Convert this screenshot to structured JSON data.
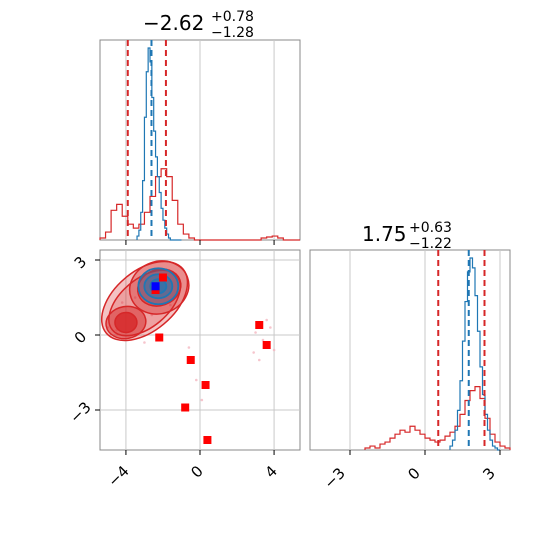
{
  "colors": {
    "blue_series": "#1f77b4",
    "red_series": "#d62728",
    "marker_red": "#ff0000",
    "marker_blue": "#0000ff",
    "grid": "#c8c8c8",
    "frame": "#888888"
  },
  "chart_data": [
    {
      "type": "histogram",
      "panel": "top-left",
      "title": {
        "median": "−2.62",
        "plus": "+0.78",
        "minus": "−1.28"
      },
      "x_range": [
        -5.4,
        5.4
      ],
      "grid": true,
      "x_ticks": [
        -4,
        0,
        4
      ],
      "show_x_tick_labels": false,
      "quantile_lines": {
        "red": [
          -3.9,
          -1.84
        ],
        "blue": [
          -2.62
        ]
      },
      "series": [
        {
          "color": "red",
          "bin_edges": [
            -5.4,
            -5.1,
            -4.8,
            -4.5,
            -4.2,
            -3.9,
            -3.6,
            -3.3,
            -3.0,
            -2.7,
            -2.4,
            -2.1,
            -1.8,
            -1.5,
            -1.2,
            -0.9,
            -0.6,
            -0.3,
            0.0,
            0.3,
            0.6,
            0.9,
            1.2,
            1.5,
            1.8,
            2.1,
            2.4,
            2.7,
            3.0,
            3.3,
            3.6,
            3.9,
            4.2,
            4.5,
            4.8,
            5.1,
            5.4
          ],
          "heights": [
            0.01,
            0.04,
            0.15,
            0.18,
            0.12,
            0.08,
            0.06,
            0.08,
            0.14,
            0.22,
            0.32,
            0.36,
            0.32,
            0.2,
            0.08,
            0.03,
            0.01,
            0,
            0,
            0,
            0,
            0,
            0,
            0,
            0,
            0,
            0,
            0,
            0,
            0.01,
            0.015,
            0.02,
            0.01,
            0,
            0,
            0
          ]
        },
        {
          "color": "blue",
          "bin_edges": [
            -3.4,
            -3.3,
            -3.2,
            -3.1,
            -3.0,
            -2.9,
            -2.8,
            -2.7,
            -2.6,
            -2.5,
            -2.4,
            -2.3,
            -2.2,
            -2.1,
            -2.0,
            -1.9,
            -1.8,
            -1.7,
            -1.6,
            -1.5,
            -1.4,
            -1.3,
            -1.2,
            -1.1,
            -1.0
          ],
          "heights": [
            0.02,
            0.05,
            0.14,
            0.3,
            0.62,
            0.85,
            0.97,
            0.9,
            0.72,
            0.55,
            0.42,
            0.32,
            0.24,
            0.16,
            0.1,
            0.06,
            0.03,
            0.01,
            0,
            0,
            0,
            0,
            0,
            0
          ]
        }
      ]
    },
    {
      "type": "contour",
      "panel": "bottom-left",
      "x_range": [
        -5.4,
        5.4
      ],
      "y_range": [
        -4.6,
        3.4
      ],
      "grid": true,
      "x_ticks": [
        "-4",
        "0",
        "4"
      ],
      "y_ticks": [
        "3",
        "0",
        "-3"
      ],
      "x_tick_values": [
        -4,
        0,
        4
      ],
      "y_tick_values": [
        3,
        0,
        -3
      ],
      "red_blob_centers": [
        [
          -2.2,
          1.9
        ],
        [
          -4.0,
          0.5
        ]
      ],
      "blue_blob_center": [
        -2.25,
        1.95
      ],
      "red_markers": [
        [
          -2.0,
          2.3
        ],
        [
          -2.4,
          1.8
        ],
        [
          -2.2,
          -0.1
        ],
        [
          -0.5,
          -1.0
        ],
        [
          0.3,
          -2.0
        ],
        [
          -0.8,
          -2.9
        ],
        [
          0.4,
          -4.2
        ],
        [
          3.2,
          0.4
        ],
        [
          3.6,
          -0.4
        ]
      ],
      "blue_markers": [
        [
          -2.4,
          1.95
        ]
      ]
    },
    {
      "type": "histogram",
      "panel": "bottom-right",
      "title": {
        "median": "1.75",
        "plus": "+0.63",
        "minus": "−1.22"
      },
      "x_range": [
        -4.6,
        3.4
      ],
      "grid": true,
      "x_ticks": [
        "-3",
        "0",
        "3"
      ],
      "x_tick_values": [
        -3,
        0,
        3
      ],
      "quantile_lines": {
        "red": [
          0.53,
          2.38
        ],
        "blue": [
          1.75
        ]
      },
      "series": [
        {
          "color": "red",
          "bin_edges": [
            -2.4,
            -2.2,
            -2.0,
            -1.8,
            -1.6,
            -1.4,
            -1.2,
            -1.0,
            -0.8,
            -0.6,
            -0.4,
            -0.2,
            0.0,
            0.2,
            0.4,
            0.6,
            0.8,
            1.0,
            1.2,
            1.4,
            1.6,
            1.8,
            2.0,
            2.2,
            2.4,
            2.6,
            2.8,
            3.0,
            3.2,
            3.4
          ],
          "heights": [
            0.01,
            0.02,
            0.01,
            0.03,
            0.04,
            0.06,
            0.08,
            0.1,
            0.09,
            0.12,
            0.1,
            0.08,
            0.06,
            0.05,
            0.04,
            0.05,
            0.07,
            0.09,
            0.12,
            0.18,
            0.25,
            0.3,
            0.32,
            0.26,
            0.16,
            0.08,
            0.04,
            0.02,
            0.01
          ]
        },
        {
          "color": "blue",
          "bin_edges": [
            1.0,
            1.1,
            1.2,
            1.3,
            1.4,
            1.5,
            1.6,
            1.7,
            1.8,
            1.9,
            2.0,
            2.1,
            2.2,
            2.3,
            2.4,
            2.5,
            2.6,
            2.7,
            2.8,
            2.9,
            3.0
          ],
          "heights": [
            0.02,
            0.05,
            0.1,
            0.2,
            0.35,
            0.55,
            0.75,
            0.9,
            0.97,
            0.92,
            0.78,
            0.6,
            0.42,
            0.28,
            0.18,
            0.1,
            0.05,
            0.02,
            0.01,
            0
          ]
        }
      ]
    }
  ]
}
